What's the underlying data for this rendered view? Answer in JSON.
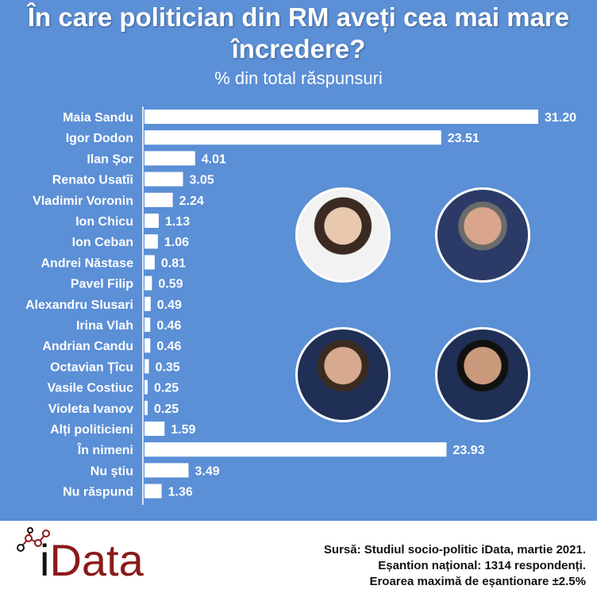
{
  "title": "În care politician din RM aveți cea mai mare încredere?",
  "subtitle": "% din total răspunsuri",
  "chart_data": {
    "type": "bar",
    "orientation": "horizontal",
    "title": "În care politician din RM aveți cea mai mare încredere?",
    "subtitle": "% din total răspunsuri",
    "categories": [
      "Maia Sandu",
      "Igor Dodon",
      "Ilan Șor",
      "Renato Usatîi",
      "Vladimir Voronin",
      "Ion Chicu",
      "Ion Ceban",
      "Andrei Năstase",
      "Pavel Filip",
      "Alexandru Slusari",
      "Irina Vlah",
      "Andrian Candu",
      "Octavian Țîcu",
      "Vasile Costiuc",
      "Violeta Ivanov",
      "Alți politicieni",
      "În nimeni",
      "Nu știu",
      "Nu răspund"
    ],
    "values": [
      31.2,
      23.51,
      4.01,
      3.05,
      2.24,
      1.13,
      1.06,
      0.81,
      0.59,
      0.49,
      0.46,
      0.46,
      0.35,
      0.25,
      0.25,
      1.59,
      23.93,
      3.49,
      1.36
    ],
    "value_labels": [
      "31.20",
      "23.51",
      "4.01",
      "3.05",
      "2.24",
      "1.13",
      "1.06",
      "0.81",
      "0.59",
      "0.49",
      "0.46",
      "0.46",
      "0.35",
      "0.25",
      "0.25",
      "1.59",
      "23.93",
      "3.49",
      "1.36"
    ],
    "xlim": [
      0,
      31.2
    ],
    "grid": false,
    "bar_color": "#ffffff",
    "background_color": "#5b8fd6"
  },
  "photos": [
    "portrait-photo",
    "portrait-photo",
    "portrait-photo",
    "portrait-photo"
  ],
  "footer": {
    "logo": "iData",
    "source_lines": [
      "Sursă: Studiul socio-politic iData, martie 2021.",
      "Eșantion național: 1314 respondenți.",
      "Eroarea maximă de eșantionare ±2.5%"
    ]
  }
}
